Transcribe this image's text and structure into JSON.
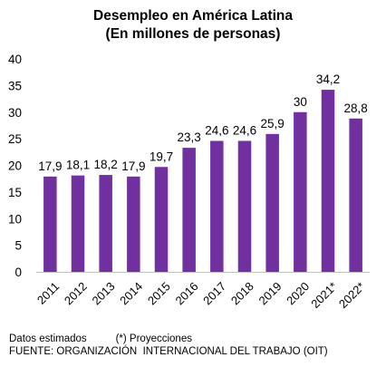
{
  "chart_data": {
    "type": "bar",
    "title_line1": "Desempleo  en América  Latina",
    "title_line2": "(En millones  de personas)",
    "categories": [
      "2011",
      "2012",
      "2013",
      "2014",
      "2015",
      "2016",
      "2017",
      "2018",
      "2019",
      "2020",
      "2021*",
      "2022*"
    ],
    "values": [
      17.9,
      18.1,
      18.2,
      17.9,
      19.7,
      23.3,
      24.6,
      24.6,
      25.9,
      30,
      34.2,
      28.8
    ],
    "value_labels": [
      "17,9",
      "18,1",
      "18,2",
      "17,9",
      "19,7",
      "23,3",
      "24,6",
      "24,6",
      "25,9",
      "30",
      "34,2",
      "28,8"
    ],
    "ylim": [
      0,
      40
    ],
    "yticks": [
      0,
      5,
      10,
      15,
      20,
      25,
      30,
      35,
      40
    ],
    "grid": false,
    "legend": "none",
    "bar_color": "#7030a0"
  },
  "footer": {
    "line1": "Datos estimados          (*) Proyecciones",
    "line2": "FUENTE: ORGANIZACIÓN  INTERNACIONAL DEL TRABAJO (OIT)"
  }
}
